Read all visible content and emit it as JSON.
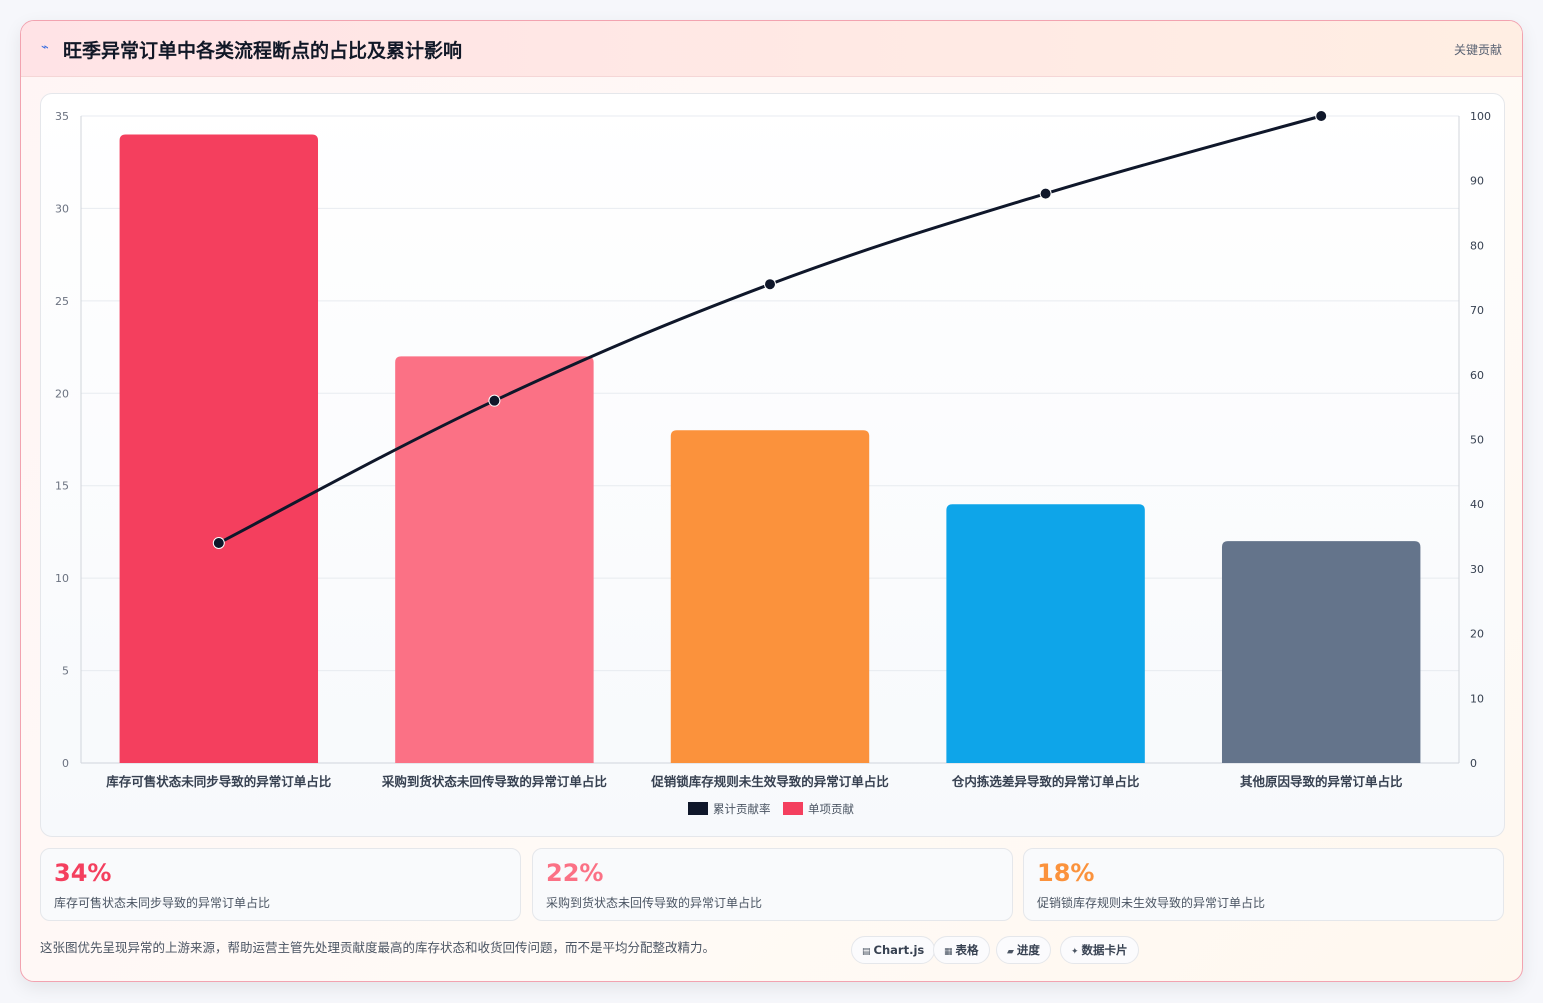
{
  "header": {
    "title": "旺季异常订单中各类流程断点的占比及累计影响",
    "tag": "关键贡献",
    "icon": "pulse-icon"
  },
  "chart_data": {
    "type": "bar",
    "categories": [
      "库存可售状态未同步导致的异常订单占比",
      "采购到货状态未回传导致的异常订单占比",
      "促销锁库存规则未生效导致的异常订单占比",
      "仓内拣选差异导致的异常订单占比",
      "其他原因导致的异常订单占比"
    ],
    "series": [
      {
        "name": "单项贡献",
        "type": "bar",
        "axis": "left",
        "values": [
          34,
          22,
          18,
          14,
          12
        ],
        "colors": [
          "#f43f5e",
          "#fb7185",
          "#fb923c",
          "#0ea5e9",
          "#64748b"
        ]
      },
      {
        "name": "累计贡献率",
        "type": "line",
        "axis": "right",
        "values": [
          34,
          56,
          74,
          88,
          100
        ],
        "color": "#0f172a"
      }
    ],
    "ylim": [
      0,
      35
    ],
    "yticks": [
      0,
      5,
      10,
      15,
      20,
      25,
      30,
      35
    ],
    "y2lim": [
      0,
      100
    ],
    "y2ticks": [
      0,
      10,
      20,
      30,
      40,
      50,
      60,
      70,
      80,
      90,
      100
    ],
    "legend_position": "bottom",
    "grid": true
  },
  "stats": [
    {
      "value": "34%",
      "label": "库存可售状态未同步导致的异常订单占比",
      "color": "#f43f5e"
    },
    {
      "value": "22%",
      "label": "采购到货状态未回传导致的异常订单占比",
      "color": "#fb7185"
    },
    {
      "value": "18%",
      "label": "促销锁库存规则未生效导致的异常订单占比",
      "color": "#fb923c"
    }
  ],
  "footnote": "这张图优先呈现异常的上游来源，帮助运营主管先处理贡献度最高的库存状态和收货回传问题，而不是平均分配整改精力。",
  "chips": [
    {
      "icon": "chart-icon",
      "glyph": "▤",
      "label": "Chart.js"
    },
    {
      "icon": "table-icon",
      "glyph": "▦",
      "label": "表格"
    },
    {
      "icon": "progress-icon",
      "glyph": "▰",
      "label": "进度"
    },
    {
      "icon": "sparkle-icon",
      "glyph": "✦",
      "label": "数据卡片"
    }
  ]
}
